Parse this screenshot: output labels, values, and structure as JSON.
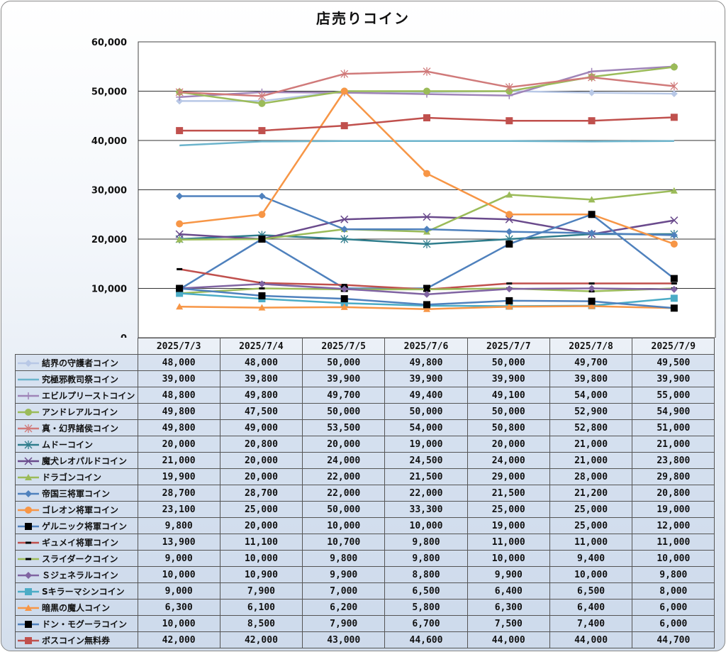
{
  "chart_data": {
    "type": "line",
    "title": "店売りコイン",
    "categories": [
      "2025/7/3",
      "2025/7/4",
      "2025/7/5",
      "2025/7/6",
      "2025/7/7",
      "2025/7/8",
      "2025/7/9"
    ],
    "ylim": [
      0,
      60000
    ],
    "yticks": [
      "0",
      "10,000",
      "20,000",
      "30,000",
      "40,000",
      "50,000",
      "60,000"
    ],
    "grid": true,
    "legend": "table-left",
    "series": [
      {
        "name": "結界の守護者コイン",
        "color": "#b8c8e6",
        "marker": "diamond",
        "values": [
          48000,
          48000,
          50000,
          49800,
          50000,
          49700,
          49500
        ],
        "labels": [
          "48,000",
          "48,000",
          "50,000",
          "49,800",
          "50,000",
          "49,700",
          "49,500"
        ]
      },
      {
        "name": "究極邪教司祭コイン",
        "color": "#6cb4cc",
        "marker": "none",
        "values": [
          39000,
          39800,
          39900,
          39900,
          39900,
          39800,
          39900
        ],
        "labels": [
          "39,000",
          "39,800",
          "39,900",
          "39,900",
          "39,900",
          "39,800",
          "39,900"
        ]
      },
      {
        "name": "エビルプリーストコイン",
        "color": "#9f84b8",
        "marker": "plus",
        "values": [
          48800,
          49800,
          49700,
          49400,
          49100,
          54000,
          55000
        ],
        "labels": [
          "48,800",
          "49,800",
          "49,700",
          "49,400",
          "49,100",
          "54,000",
          "55,000"
        ]
      },
      {
        "name": "アンドレアルコイン",
        "color": "#9bbb59",
        "marker": "circle",
        "values": [
          49800,
          47500,
          50000,
          50000,
          50000,
          52900,
          54900
        ],
        "labels": [
          "49,800",
          "47,500",
          "50,000",
          "50,000",
          "50,000",
          "52,900",
          "54,900"
        ]
      },
      {
        "name": "真・幻界諸侯コイン",
        "color": "#d07a7a",
        "marker": "star",
        "values": [
          49800,
          49000,
          53500,
          54000,
          50800,
          52800,
          51000
        ],
        "labels": [
          "49,800",
          "49,000",
          "53,500",
          "54,000",
          "50,800",
          "52,800",
          "51,000"
        ]
      },
      {
        "name": "ムドーコイン",
        "color": "#2f7d8c",
        "marker": "star",
        "values": [
          20000,
          20800,
          20000,
          19000,
          20000,
          21000,
          21000
        ],
        "labels": [
          "20,000",
          "20,800",
          "20,000",
          "19,000",
          "20,000",
          "21,000",
          "21,000"
        ]
      },
      {
        "name": "魔犬レオパルドコイン",
        "color": "#6a4a8c",
        "marker": "x",
        "values": [
          21000,
          20000,
          24000,
          24500,
          24000,
          21000,
          23800
        ],
        "labels": [
          "21,000",
          "20,000",
          "24,000",
          "24,500",
          "24,000",
          "21,000",
          "23,800"
        ]
      },
      {
        "name": "ドラゴンコイン",
        "color": "#9bbb59",
        "marker": "triangle",
        "values": [
          19900,
          20000,
          22000,
          21500,
          29000,
          28000,
          29800
        ],
        "labels": [
          "19,900",
          "20,000",
          "22,000",
          "21,500",
          "29,000",
          "28,000",
          "29,800"
        ]
      },
      {
        "name": "帝国三将軍コイン",
        "color": "#4f81bd",
        "marker": "diamond",
        "values": [
          28700,
          28700,
          22000,
          22000,
          21500,
          21200,
          20800
        ],
        "labels": [
          "28,700",
          "28,700",
          "22,000",
          "22,000",
          "21,500",
          "21,200",
          "20,800"
        ]
      },
      {
        "name": "ゴレオン将軍コイン",
        "color": "#f79646",
        "marker": "circle",
        "values": [
          23100,
          25000,
          50000,
          33300,
          25000,
          25000,
          19000
        ],
        "labels": [
          "23,100",
          "25,000",
          "50,000",
          "33,300",
          "25,000",
          "25,000",
          "19,000"
        ]
      },
      {
        "name": "ゲルニック将軍コイン",
        "color": "#4f81bd",
        "marker": "square-black",
        "values": [
          9800,
          20000,
          10000,
          10000,
          19000,
          25000,
          12000
        ],
        "labels": [
          "9,800",
          "20,000",
          "10,000",
          "10,000",
          "19,000",
          "25,000",
          "12,000"
        ]
      },
      {
        "name": "ギュメイ将軍コイン",
        "color": "#c0504d",
        "marker": "dash",
        "values": [
          13900,
          11100,
          10700,
          9800,
          11000,
          11000,
          11000
        ],
        "labels": [
          "13,900",
          "11,100",
          "10,700",
          "9,800",
          "11,000",
          "11,000",
          "11,000"
        ]
      },
      {
        "name": "スライダークコイン",
        "color": "#9bbb59",
        "marker": "dash",
        "values": [
          9000,
          10000,
          9800,
          9800,
          10000,
          9400,
          10000
        ],
        "labels": [
          "9,000",
          "10,000",
          "9,800",
          "9,800",
          "10,000",
          "9,400",
          "10,000"
        ]
      },
      {
        "name": "Ｓジェネラルコイン",
        "color": "#8064a2",
        "marker": "diamond",
        "values": [
          10000,
          10900,
          9900,
          8800,
          9900,
          10000,
          9800
        ],
        "labels": [
          "10,000",
          "10,900",
          "9,900",
          "8,800",
          "9,900",
          "10,000",
          "9,800"
        ]
      },
      {
        "name": "Sキラーマシンコイン",
        "color": "#4bacc6",
        "marker": "square",
        "values": [
          9000,
          7900,
          7000,
          6500,
          6400,
          6500,
          8000
        ],
        "labels": [
          "9,000",
          "7,900",
          "7,000",
          "6,500",
          "6,400",
          "6,500",
          "8,000"
        ]
      },
      {
        "name": "暗黒の魔人コイン",
        "color": "#f79646",
        "marker": "triangle",
        "values": [
          6300,
          6100,
          6200,
          5800,
          6300,
          6400,
          6000
        ],
        "labels": [
          "6,300",
          "6,100",
          "6,200",
          "5,800",
          "6,300",
          "6,400",
          "6,000"
        ]
      },
      {
        "name": "ドン・モグーラコイン",
        "color": "#4f81bd",
        "marker": "square-black",
        "values": [
          10000,
          8500,
          7900,
          6700,
          7500,
          7400,
          6000
        ],
        "labels": [
          "10,000",
          "8,500",
          "7,900",
          "6,700",
          "7,500",
          "7,400",
          "6,000"
        ]
      },
      {
        "name": "ボスコイン無料券",
        "color": "#c0504d",
        "marker": "square",
        "values": [
          42000,
          42000,
          43000,
          44600,
          44000,
          44000,
          44700
        ],
        "labels": [
          "42,000",
          "42,000",
          "43,000",
          "44,600",
          "44,000",
          "44,000",
          "44,700"
        ]
      }
    ]
  }
}
